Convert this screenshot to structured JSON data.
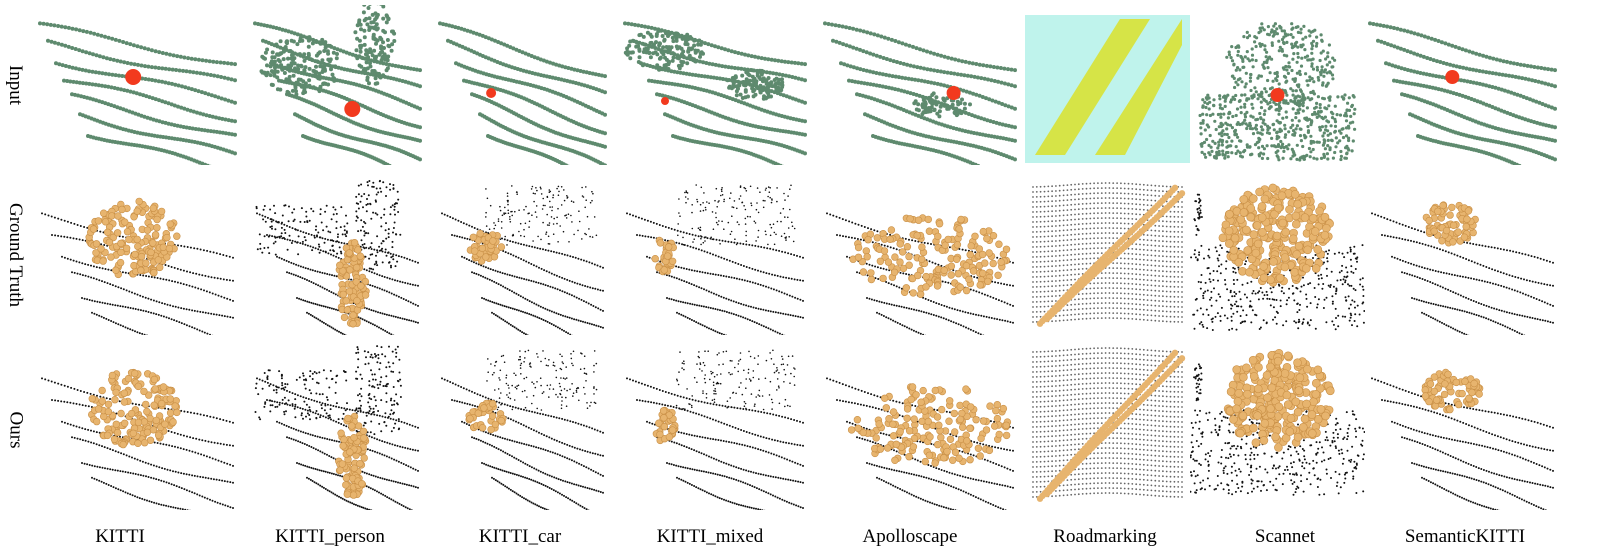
{
  "rows": [
    {
      "id": "input",
      "label": "Input"
    },
    {
      "id": "gt",
      "label": "Ground Truth"
    },
    {
      "id": "ours",
      "label": "Ours"
    }
  ],
  "columns": [
    {
      "id": "kitti",
      "label": "KITTI"
    },
    {
      "id": "kitti_person",
      "label": "KITTI_person"
    },
    {
      "id": "kitti_car",
      "label": "KITTI_car"
    },
    {
      "id": "kitti_mixed",
      "label": "KITTI_mixed"
    },
    {
      "id": "apolloscape",
      "label": "Apolloscape"
    },
    {
      "id": "roadmarking",
      "label": "Roadmarking"
    },
    {
      "id": "scannet",
      "label": "Scannet"
    },
    {
      "id": "semantickitti",
      "label": "SemanticKITTI"
    }
  ],
  "colors": {
    "input_points": "#5e8a6e",
    "click_marker": "#f23a1e",
    "background_points": "#111111",
    "segment_points": "#e7b46e",
    "segment_edge": "#c99047",
    "road_line": "#2ad3c6",
    "road_mark_hot": "#e8771e",
    "road_mark_warm": "#d9e02a"
  }
}
